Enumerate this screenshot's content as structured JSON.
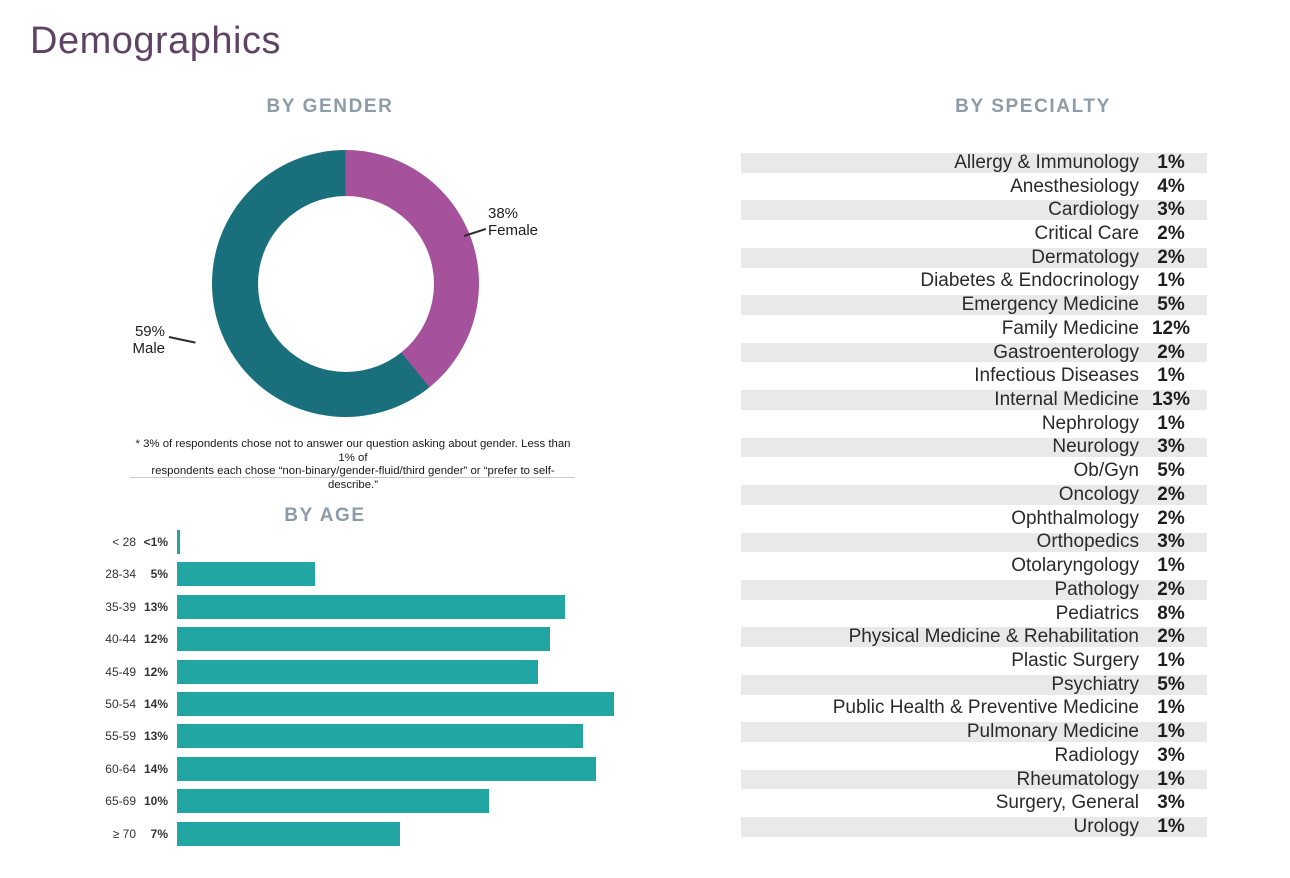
{
  "page": {
    "title": "Demographics"
  },
  "colors": {
    "title_purple": "#5E4365",
    "heading_gray_blue": "#8C9CA9",
    "donut_female": "#A6519B",
    "donut_male": "#1A6F7D",
    "age_bar_teal": "#21A6A4",
    "stripe_gray": "#E9E9E9"
  },
  "chart_data": [
    {
      "id": "gender",
      "type": "pie",
      "donut": true,
      "title": "BY GENDER",
      "start_angle": "female segment begins at 12 o'clock, clockwise",
      "segments": [
        {
          "label": "Female",
          "value": 38,
          "value_label": "38%",
          "color": "#A6519B"
        },
        {
          "label": "Male",
          "value": 59,
          "value_label": "59%",
          "color": "#1A6F7D"
        }
      ],
      "footnote_lines": [
        "* 3% of respondents chose not to answer our question asking about gender. Less than 1% of",
        "respondents each chose “non-binary/gender-fluid/third gender” or “prefer to self-describe.”"
      ]
    },
    {
      "id": "age",
      "type": "bar",
      "orientation": "horizontal",
      "title": "BY AGE",
      "bar_color": "#21A6A4",
      "axis_max_percent": 14.3,
      "rows": [
        {
          "category": "< 28",
          "value_label": "<1%",
          "value": 0.1
        },
        {
          "category": "28-34",
          "value_label": "5%",
          "value": 4.5
        },
        {
          "category": "35-39",
          "value_label": "13%",
          "value": 12.7
        },
        {
          "category": "40-44",
          "value_label": "12%",
          "value": 12.2
        },
        {
          "category": "45-49",
          "value_label": "12%",
          "value": 11.8
        },
        {
          "category": "50-54",
          "value_label": "14%",
          "value": 14.3
        },
        {
          "category": "55-59",
          "value_label": "13%",
          "value": 13.3
        },
        {
          "category": "60-64",
          "value_label": "14%",
          "value": 13.7
        },
        {
          "category": "65-69",
          "value_label": "10%",
          "value": 10.2
        },
        {
          "category": "≥ 70",
          "value_label": "7%",
          "value": 7.3
        }
      ]
    },
    {
      "id": "specialty",
      "type": "table",
      "title": "BY SPECIALTY",
      "stripe_color": "#E9E9E9",
      "rows": [
        {
          "specialty": "Allergy & Immunology",
          "value_label": "1%"
        },
        {
          "specialty": "Anesthesiology",
          "value_label": "4%"
        },
        {
          "specialty": "Cardiology",
          "value_label": "3%"
        },
        {
          "specialty": "Critical Care",
          "value_label": "2%"
        },
        {
          "specialty": "Dermatology",
          "value_label": "2%"
        },
        {
          "specialty": "Diabetes & Endocrinology",
          "value_label": "1%"
        },
        {
          "specialty": "Emergency Medicine",
          "value_label": "5%"
        },
        {
          "specialty": "Family Medicine",
          "value_label": "12%"
        },
        {
          "specialty": "Gastroenterology",
          "value_label": "2%"
        },
        {
          "specialty": "Infectious Diseases",
          "value_label": "1%"
        },
        {
          "specialty": "Internal Medicine",
          "value_label": "13%"
        },
        {
          "specialty": "Nephrology",
          "value_label": "1%"
        },
        {
          "specialty": "Neurology",
          "value_label": "3%"
        },
        {
          "specialty": "Ob/Gyn",
          "value_label": "5%"
        },
        {
          "specialty": "Oncology",
          "value_label": "2%"
        },
        {
          "specialty": "Ophthalmology",
          "value_label": "2%"
        },
        {
          "specialty": "Orthopedics",
          "value_label": "3%"
        },
        {
          "specialty": "Otolaryngology",
          "value_label": "1%"
        },
        {
          "specialty": "Pathology",
          "value_label": "2%"
        },
        {
          "specialty": "Pediatrics",
          "value_label": "8%"
        },
        {
          "specialty": "Physical Medicine & Rehabilitation",
          "value_label": "2%"
        },
        {
          "specialty": "Plastic Surgery",
          "value_label": "1%"
        },
        {
          "specialty": "Psychiatry",
          "value_label": "5%"
        },
        {
          "specialty": "Public Health & Preventive Medicine",
          "value_label": "1%"
        },
        {
          "specialty": "Pulmonary Medicine",
          "value_label": "1%"
        },
        {
          "specialty": "Radiology",
          "value_label": "3%"
        },
        {
          "specialty": "Rheumatology",
          "value_label": "1%"
        },
        {
          "specialty": "Surgery, General",
          "value_label": "3%"
        },
        {
          "specialty": "Urology",
          "value_label": "1%"
        }
      ]
    }
  ]
}
